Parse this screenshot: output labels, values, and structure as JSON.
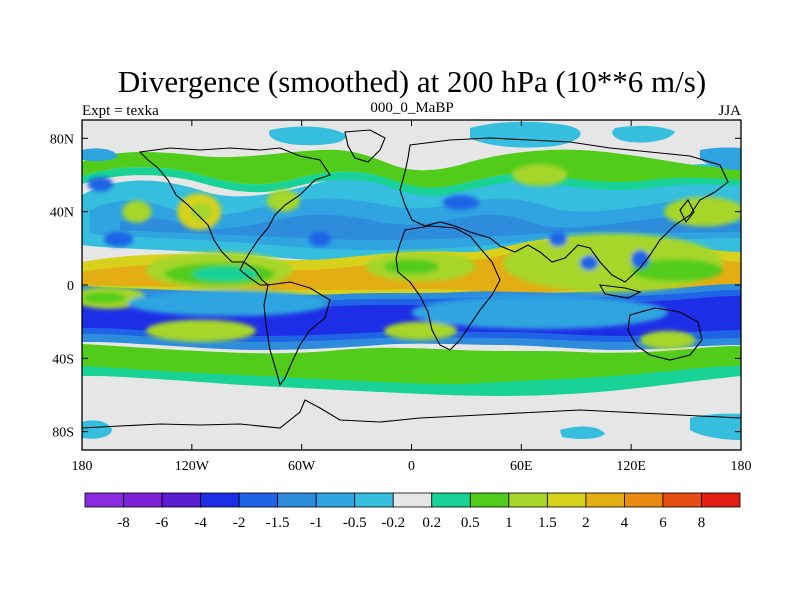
{
  "chart_data": {
    "type": "heatmap",
    "title": "Divergence (smoothed) at 200 hPa (10**6 m/s)",
    "subtitle_left": "Expt = texka",
    "subtitle_center": "000_0_MaBP",
    "subtitle_right": "JJA",
    "xlim": [
      -180,
      180
    ],
    "ylim": [
      -90,
      90
    ],
    "x_ticks": [
      {
        "value": -180,
        "label": "180"
      },
      {
        "value": -120,
        "label": "120W"
      },
      {
        "value": -60,
        "label": "60W"
      },
      {
        "value": 0,
        "label": "0"
      },
      {
        "value": 60,
        "label": "60E"
      },
      {
        "value": 120,
        "label": "120E"
      },
      {
        "value": 180,
        "label": "180"
      }
    ],
    "y_ticks": [
      {
        "value": 80,
        "label": "80N"
      },
      {
        "value": 40,
        "label": "40N"
      },
      {
        "value": 0,
        "label": "0"
      },
      {
        "value": -40,
        "label": "40S"
      },
      {
        "value": -80,
        "label": "80S"
      }
    ],
    "colorbar": {
      "colors": [
        "#8a2be2",
        "#7b22d8",
        "#5a1fd0",
        "#1e2ee6",
        "#1f63e6",
        "#2d8cdc",
        "#2fa4e0",
        "#36bede",
        "#e6e6e6",
        "#19d296",
        "#52cc1a",
        "#a6d62a",
        "#d6d21c",
        "#e3ad13",
        "#e88a12",
        "#e64d12",
        "#e31d12"
      ],
      "labels": [
        "-8",
        "-6",
        "-4",
        "-2",
        "-1.5",
        "-1",
        "-0.5",
        "-0.2",
        "0.2",
        "0.5",
        "1",
        "1.5",
        "2",
        "4",
        "6",
        "8"
      ]
    },
    "features": [
      {
        "level": 3,
        "lon": -105,
        "lat": 8,
        "rx": 40,
        "ry": 10
      },
      {
        "level": 2,
        "lon": -105,
        "lat": 6,
        "rx": 30,
        "ry": 6
      },
      {
        "level": 1,
        "lon": -102,
        "lat": 6,
        "rx": 18,
        "ry": 4
      },
      {
        "level": 3,
        "lon": -165,
        "lat": -7,
        "rx": 20,
        "ry": 6
      },
      {
        "level": 2,
        "lon": -168,
        "lat": -7,
        "rx": 12,
        "ry": 3
      },
      {
        "level": 3,
        "lon": 5,
        "lat": 10,
        "rx": 30,
        "ry": 8
      },
      {
        "level": 2,
        "lon": 0,
        "lat": 10,
        "rx": 15,
        "ry": 4
      },
      {
        "level": 3,
        "lon": 110,
        "lat": 12,
        "rx": 60,
        "ry": 16
      },
      {
        "level": 2,
        "lon": 145,
        "lat": 8,
        "rx": 25,
        "ry": 6
      },
      {
        "level": 3,
        "lon": 160,
        "lat": 40,
        "rx": 22,
        "ry": 8
      },
      {
        "level": 3,
        "lon": -150,
        "lat": 40,
        "rx": 8,
        "ry": 6
      },
      {
        "level": 4,
        "lon": -116,
        "lat": 40,
        "rx": 12,
        "ry": 10
      },
      {
        "level": 3,
        "lon": -115,
        "lat": 40,
        "rx": 6,
        "ry": 5
      },
      {
        "level": 3,
        "lon": -70,
        "lat": 46,
        "rx": 9,
        "ry": 6
      },
      {
        "level": 3,
        "lon": 70,
        "lat": 60,
        "rx": 15,
        "ry": 6
      },
      {
        "level": 3,
        "lon": -115,
        "lat": -25,
        "rx": 30,
        "ry": 6
      },
      {
        "level": 3,
        "lon": 5,
        "lat": -25,
        "rx": 20,
        "ry": 5
      },
      {
        "level": 3,
        "lon": 140,
        "lat": -30,
        "rx": 15,
        "ry": 5
      },
      {
        "level": -4,
        "lon": -160,
        "lat": 25,
        "rx": 8,
        "ry": 4
      },
      {
        "level": -4,
        "lon": 27,
        "lat": 45,
        "rx": 10,
        "ry": 4
      },
      {
        "level": -4,
        "lon": 97,
        "lat": 12,
        "rx": 5,
        "ry": 4
      },
      {
        "level": -4,
        "lon": 125,
        "lat": 14,
        "rx": 5,
        "ry": 5
      },
      {
        "level": -4,
        "lon": 80,
        "lat": 25,
        "rx": 5,
        "ry": 4
      },
      {
        "level": -4,
        "lon": -50,
        "lat": 25,
        "rx": 6,
        "ry": 4
      },
      {
        "level": -4,
        "lon": -170,
        "lat": 55,
        "rx": 7,
        "ry": 4
      },
      {
        "level": -2,
        "lon": -100,
        "lat": -10,
        "rx": 55,
        "ry": 7
      },
      {
        "level": -2,
        "lon": 70,
        "lat": -15,
        "rx": 70,
        "ry": 9
      }
    ]
  }
}
